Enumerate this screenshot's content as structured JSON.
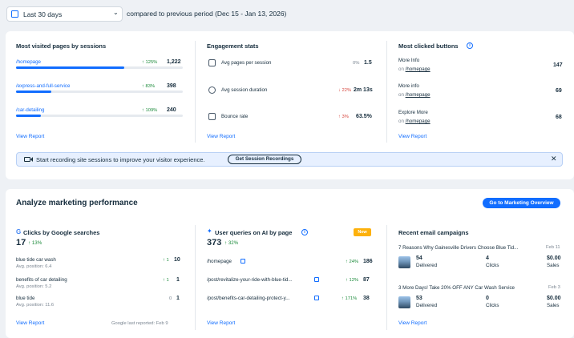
{
  "header": {
    "period_select": "Last 30 days",
    "compare_text": "compared to previous period (Dec 15 - Jan 13, 2026)"
  },
  "top_card": {
    "pages": {
      "title": "Most visited pages by sessions",
      "rows": [
        {
          "page": "/homepage",
          "change": "125%",
          "value": "1,222",
          "fill": 0.65
        },
        {
          "page": "/express-and-full-service",
          "change": "83%",
          "value": "398",
          "fill": 0.21
        },
        {
          "page": "/car-detailing",
          "change": "109%",
          "value": "240",
          "fill": 0.15
        }
      ],
      "view_report": "View Report"
    },
    "engagement": {
      "title": "Engagement stats",
      "rows": [
        {
          "label": "Avg pages per session",
          "change": "0%",
          "value": "1.5",
          "dir": "none"
        },
        {
          "label": "Avg session duration",
          "change": "22%",
          "value": "2m 13s",
          "dir": "down"
        },
        {
          "label": "Bounce rate",
          "change": "3%",
          "value": "63.5%",
          "dir": "up"
        }
      ],
      "view_report": "View Report"
    },
    "buttons": {
      "title": "Most clicked buttons",
      "rows": [
        {
          "name": "More Info",
          "on": "on",
          "page": "/homepage",
          "value": "147"
        },
        {
          "name": "More info",
          "on": "on",
          "page": "/homepage",
          "value": "69"
        },
        {
          "name": "Explore More",
          "on": "on",
          "page": "/homepage",
          "value": "68"
        }
      ],
      "view_report": "View Report"
    },
    "banner": {
      "text": "Start recording site sessions to improve your visitor experience.",
      "button": "Get Session Recordings"
    }
  },
  "marketing": {
    "title": "Analyze marketing performance",
    "overview_button": "Go to Marketing Overview",
    "google": {
      "title": "Clicks by Google searches",
      "total": "17",
      "total_change": "13%",
      "rows": [
        {
          "query": "blue tide car wash",
          "position": "Avg. position: 6.4",
          "change": "1",
          "value": "10",
          "dir": "up"
        },
        {
          "query": "benefits of car detailing",
          "position": "Avg. position: 5.2",
          "change": "1",
          "value": "1",
          "dir": "up"
        },
        {
          "query": "blue tide",
          "position": "Avg. position: 11.6",
          "change": "0",
          "value": "1",
          "dir": "none"
        }
      ],
      "view_report": "View Report",
      "last_reported": "Google last reported: Feb 9"
    },
    "ai": {
      "title": "User queries on AI by page",
      "badge": "New",
      "total": "373",
      "total_change": "32%",
      "rows": [
        {
          "page": "/homepage",
          "change": "24%",
          "value": "186"
        },
        {
          "page": "/post/revitalize-your-ride-with-blue-tid...",
          "change": "12%",
          "value": "87"
        },
        {
          "page": "/post/benefits-car-detailing-protect-y...",
          "change": "171%",
          "value": "38"
        }
      ],
      "view_report": "View Report"
    },
    "email": {
      "title": "Recent email campaigns",
      "campaigns": [
        {
          "name": "7 Reasons Why Gainesville Drivers Choose Blue Tid...",
          "date": "Feb 11",
          "delivered": "54",
          "delivered_label": "Delivered",
          "clicks": "4",
          "clicks_label": "Clicks",
          "sales": "$0.00",
          "sales_label": "Sales"
        },
        {
          "name": "3 More Days! Take 20% OFF ANY Car Wash Service",
          "date": "Feb 3",
          "delivered": "53",
          "delivered_label": "Delivered",
          "clicks": "0",
          "clicks_label": "Clicks",
          "sales": "$0.00",
          "sales_label": "Sales"
        }
      ],
      "view_report": "View Report"
    }
  }
}
